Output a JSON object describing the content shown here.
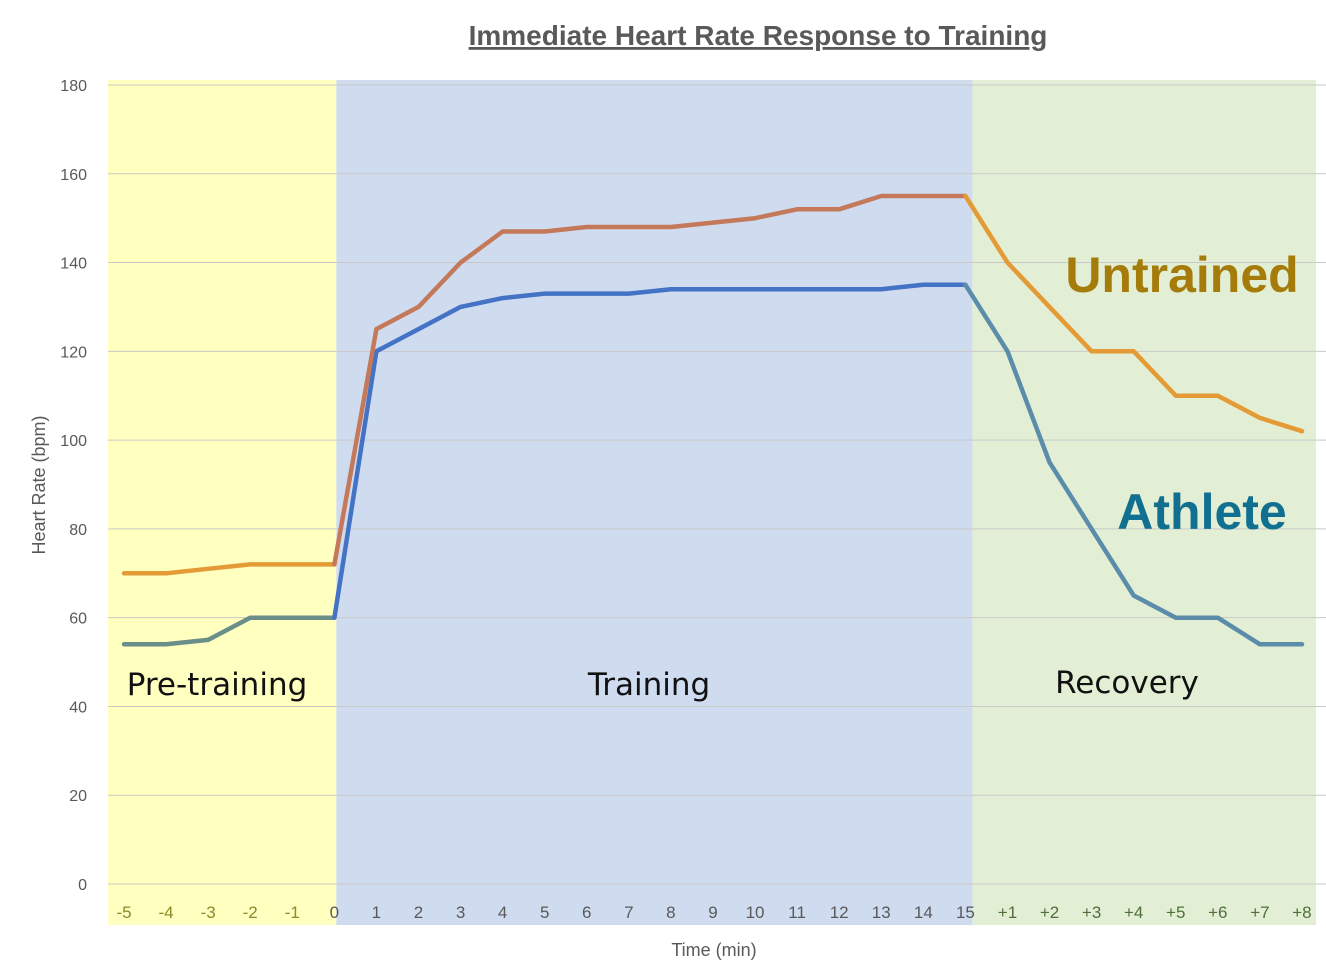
{
  "chart_data": {
    "type": "line",
    "title": "Immediate Heart Rate Response to Training",
    "xlabel": "Time (min)",
    "ylabel": "Heart Rate (bpm)",
    "ylim": [
      0,
      180
    ],
    "yticks": [
      0,
      20,
      40,
      60,
      80,
      100,
      120,
      140,
      160,
      180
    ],
    "grid": true,
    "x": [
      "-5",
      "-4",
      "-3",
      "-2",
      "-1",
      "0",
      "1",
      "2",
      "3",
      "4",
      "5",
      "6",
      "7",
      "8",
      "9",
      "10",
      "11",
      "12",
      "13",
      "14",
      "15",
      "+1",
      "+2",
      "+3",
      "+4",
      "+5",
      "+6",
      "+7",
      "+8"
    ],
    "phases": [
      {
        "label": "Pre-training",
        "from": "-5",
        "to": "0",
        "color": "#ffffc0"
      },
      {
        "label": "Training",
        "from": "0",
        "to": "15",
        "color": "#cfdcf0"
      },
      {
        "label": "Recovery",
        "from": "15",
        "to": "+8",
        "color": "#e2efd5"
      }
    ],
    "series": [
      {
        "name": "Untrained",
        "label_color": "#a57c0a",
        "colors": {
          "pre": "#e49a35",
          "train": "#c47a5a",
          "recovery": "#e49a35"
        },
        "values": [
          70,
          70,
          71,
          72,
          72,
          72,
          125,
          130,
          140,
          147,
          147,
          148,
          148,
          148,
          149,
          150,
          152,
          152,
          155,
          155,
          155,
          140,
          130,
          120,
          120,
          110,
          110,
          105,
          102
        ]
      },
      {
        "name": "Athlete",
        "label_color": "#116f8f",
        "colors": {
          "pre": "#6a8e88",
          "train": "#4472c4",
          "recovery": "#5b8dab"
        },
        "values": [
          54,
          54,
          55,
          60,
          60,
          60,
          120,
          125,
          130,
          132,
          133,
          133,
          133,
          134,
          134,
          134,
          134,
          134,
          134,
          135,
          135,
          120,
          95,
          80,
          65,
          60,
          60,
          54,
          54
        ]
      }
    ]
  }
}
